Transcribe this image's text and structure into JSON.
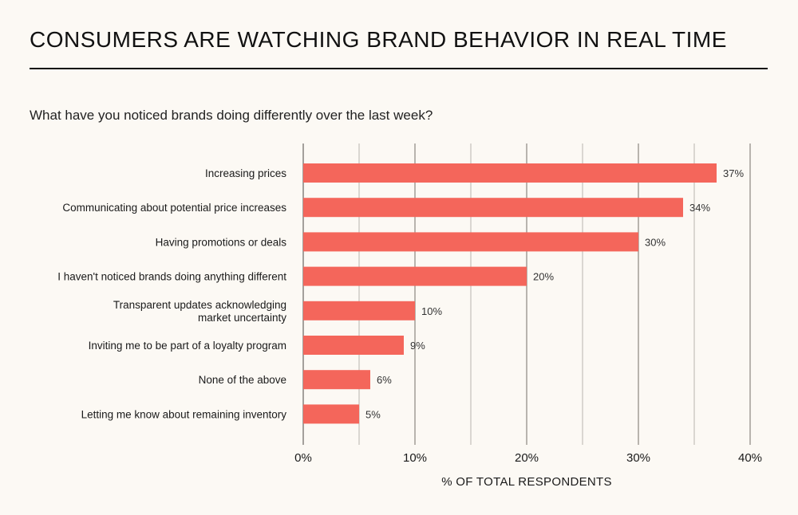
{
  "header": {
    "title": "CONSUMERS ARE WATCHING BRAND BEHAVIOR IN REAL TIME",
    "subtitle": "What have you noticed brands doing differently over the last week?"
  },
  "colors": {
    "bar": "#f4665b",
    "background": "#fcf9f4",
    "grid": "#b7b3ad"
  },
  "chart_data": {
    "type": "bar",
    "orientation": "horizontal",
    "title": "CONSUMERS ARE WATCHING BRAND BEHAVIOR IN REAL TIME",
    "subtitle": "What have you noticed brands doing differently over the last week?",
    "categories": [
      [
        "Increasing prices"
      ],
      [
        "Communicating about potential price increases"
      ],
      [
        "Having promotions or deals"
      ],
      [
        "I haven't noticed brands doing anything different"
      ],
      [
        "Transparent updates acknowledging",
        "market uncertainty"
      ],
      [
        "Inviting me to be part of a loyalty program"
      ],
      [
        "None of the above"
      ],
      [
        "Letting me know about remaining inventory"
      ]
    ],
    "values": [
      37,
      34,
      30,
      20,
      10,
      9,
      6,
      5
    ],
    "value_labels": [
      "37%",
      "34%",
      "30%",
      "20%",
      "10%",
      "9%",
      "6%",
      "5%"
    ],
    "xlabel": "% OF TOTAL RESPONDENTS",
    "ylabel": "",
    "xlim": [
      0,
      40
    ],
    "major_ticks": [
      0,
      10,
      20,
      30,
      40
    ],
    "minor_ticks": [
      5,
      15,
      25,
      35
    ],
    "tick_labels": [
      "0%",
      "10%",
      "20%",
      "30%",
      "40%"
    ],
    "grid": true,
    "legend": "none"
  }
}
